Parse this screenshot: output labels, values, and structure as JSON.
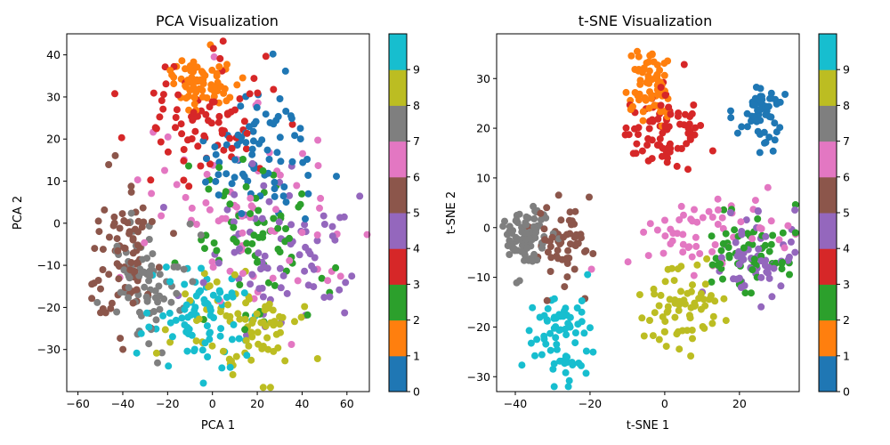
{
  "chart_data": [
    {
      "type": "scatter",
      "title": "PCA Visualization",
      "xlabel": "PCA 1",
      "ylabel": "PCA 2",
      "xlim": [
        -65,
        70
      ],
      "ylim": [
        -40,
        45
      ],
      "xticks": [
        -60,
        -40,
        -20,
        0,
        20,
        40,
        60
      ],
      "yticks": [
        -30,
        -20,
        -10,
        0,
        10,
        20,
        30,
        40
      ],
      "colorbar": {
        "label_values": [
          0,
          1,
          2,
          3,
          4,
          5,
          6,
          7,
          8,
          9
        ]
      },
      "grid": false,
      "clusters": [
        {
          "label": 0,
          "cx": 22,
          "cy": 17,
          "sx": 12,
          "sy": 8,
          "n": 80
        },
        {
          "label": 1,
          "cx": -5,
          "cy": 34,
          "sx": 8,
          "sy": 3.5,
          "n": 70
        },
        {
          "label": 2,
          "cx": 18,
          "cy": -2,
          "sx": 14,
          "sy": 9,
          "n": 70
        },
        {
          "label": 3,
          "cx": 0,
          "cy": 25,
          "sx": 14,
          "sy": 7,
          "n": 80
        },
        {
          "label": 4,
          "cx": 30,
          "cy": -8,
          "sx": 18,
          "sy": 8,
          "n": 80
        },
        {
          "label": 5,
          "cx": -40,
          "cy": -8,
          "sx": 8,
          "sy": 8,
          "n": 80
        },
        {
          "label": 6,
          "cx": 15,
          "cy": 2,
          "sx": 22,
          "sy": 13,
          "n": 70
        },
        {
          "label": 7,
          "cx": -30,
          "cy": -14,
          "sx": 8,
          "sy": 7,
          "n": 80
        },
        {
          "label": 8,
          "cx": 12,
          "cy": -24,
          "sx": 15,
          "sy": 6,
          "n": 80
        },
        {
          "label": 9,
          "cx": -5,
          "cy": -22,
          "sx": 13,
          "sy": 7,
          "n": 80
        }
      ]
    },
    {
      "type": "scatter",
      "title": "t-SNE Visualization",
      "xlabel": "t-SNE 1",
      "ylabel": "t-SNE 2",
      "xlim": [
        -45,
        36
      ],
      "ylim": [
        -33,
        39
      ],
      "xticks": [
        -40,
        -20,
        0,
        20
      ],
      "yticks": [
        -30,
        -20,
        -10,
        0,
        10,
        20,
        30
      ],
      "colorbar": {
        "label_values": [
          0,
          1,
          2,
          3,
          4,
          5,
          6,
          7,
          8,
          9
        ]
      },
      "grid": false,
      "clusters": [
        {
          "label": 0,
          "cx": 26,
          "cy": 23,
          "sx": 3,
          "sy": 3,
          "n": 60
        },
        {
          "label": 1,
          "cx": -4,
          "cy": 29,
          "sx": 3,
          "sy": 3.5,
          "n": 70
        },
        {
          "label": 2,
          "cx": 22,
          "cy": -5,
          "sx": 7,
          "sy": 4,
          "n": 60
        },
        {
          "label": 3,
          "cx": 1,
          "cy": 20,
          "sx": 5,
          "sy": 4,
          "n": 80
        },
        {
          "label": 4,
          "cx": 24,
          "cy": -6,
          "sx": 6,
          "sy": 4,
          "n": 60
        },
        {
          "label": 5,
          "cx": -27,
          "cy": -4,
          "sx": 4,
          "sy": 4,
          "n": 60
        },
        {
          "label": 6,
          "cx": 10,
          "cy": -1,
          "sx": 10,
          "sy": 4,
          "n": 60
        },
        {
          "label": 7,
          "cx": -37,
          "cy": -2,
          "sx": 3,
          "sy": 3,
          "n": 90
        },
        {
          "label": 8,
          "cx": 4,
          "cy": -16,
          "sx": 5,
          "sy": 4,
          "n": 70
        },
        {
          "label": 9,
          "cx": -28,
          "cy": -22,
          "sx": 4,
          "sy": 5,
          "n": 70
        }
      ]
    }
  ],
  "palette": [
    "#1f77b4",
    "#ff7f0e",
    "#2ca02c",
    "#d62728",
    "#9467bd",
    "#8c564b",
    "#e377c2",
    "#7f7f7f",
    "#bcbd22",
    "#17becf"
  ],
  "text": {
    "pca_title": "PCA Visualization",
    "pca_xlabel": "PCA 1",
    "pca_ylabel": "PCA 2",
    "tsne_title": "t-SNE Visualization",
    "tsne_xlabel": "t-SNE 1",
    "tsne_ylabel": "t-SNE 2"
  }
}
